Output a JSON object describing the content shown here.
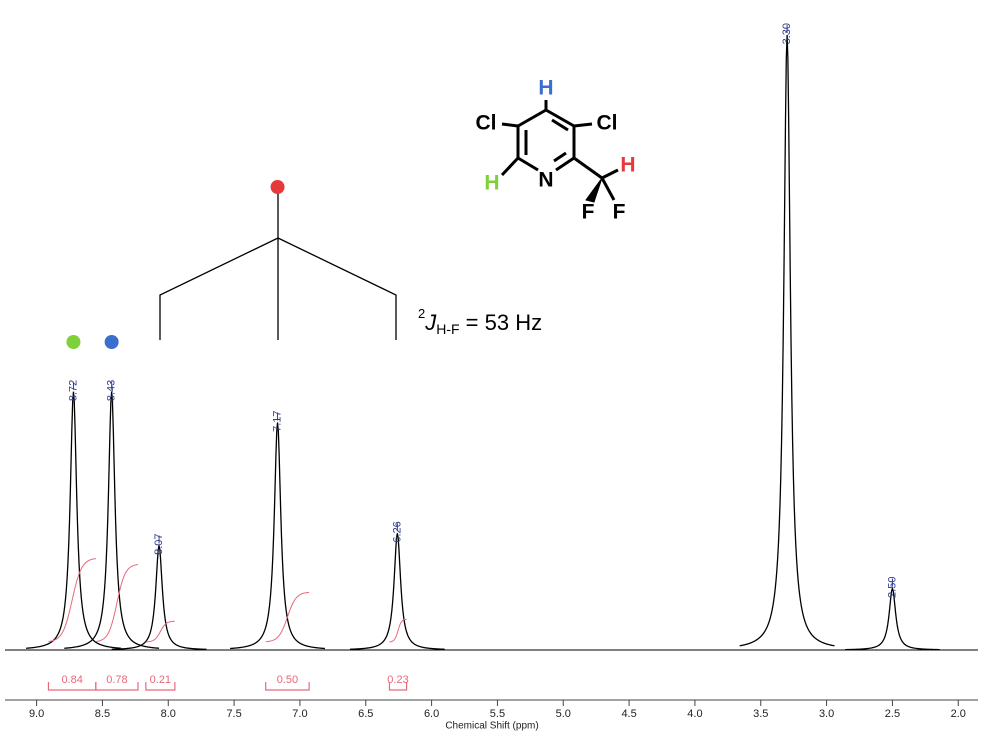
{
  "chart_data": {
    "type": "spectrum",
    "xlabel": "Chemical Shift (ppm)",
    "xlim": [
      9.24,
      1.85
    ],
    "ylim": [
      -3,
      100
    ],
    "xticks": [
      {
        "value": 9,
        "label": "9.0"
      },
      {
        "value": 8.5,
        "label": "8.5"
      },
      {
        "value": 8,
        "label": "8.0"
      },
      {
        "value": 7.5,
        "label": "7.5"
      },
      {
        "value": 7,
        "label": "7.0"
      },
      {
        "value": 6.5,
        "label": "6.5"
      },
      {
        "value": 6,
        "label": "6.0"
      },
      {
        "value": 5.5,
        "label": "5.5"
      },
      {
        "value": 5,
        "label": "5.0"
      },
      {
        "value": 4.5,
        "label": "4.5"
      },
      {
        "value": 4,
        "label": "4.0"
      },
      {
        "value": 3.5,
        "label": "3.5"
      },
      {
        "value": 3,
        "label": "3.0"
      },
      {
        "value": 2.5,
        "label": "2.5"
      },
      {
        "value": 2,
        "label": "2.0"
      }
    ],
    "color": "#000000",
    "peaks": {
      "x": [
        8.72,
        8.43,
        8.07,
        7.17,
        6.26,
        3.3,
        2.5
      ],
      "x_labels": [
        "8.72",
        "8.43",
        "8.07",
        "7.17",
        "6.26",
        "3.30",
        "2.50"
      ],
      "values": [
        42,
        42,
        17,
        37,
        19,
        100,
        10
      ],
      "label_color": "#2e3d8f"
    },
    "integrals": {
      "values": [
        0.84,
        0.78,
        0.21,
        0.5,
        0.23
      ],
      "value_labels": [
        "0.84",
        "0.78",
        "0.21",
        "0.50",
        "0.23"
      ],
      "ranges": [
        [
          8.91,
          8.55
        ],
        [
          8.55,
          8.23
        ],
        [
          8.17,
          7.95
        ],
        [
          7.26,
          6.93
        ],
        [
          6.32,
          6.19
        ]
      ],
      "color": "#e8697a"
    },
    "markers": [
      {
        "x": 8.72,
        "color": "#7fd13b"
      },
      {
        "x": 8.43,
        "color": "#3a6fd0"
      },
      {
        "x": 7.17,
        "color": "#e8393a"
      }
    ],
    "coupling": {
      "superscript": "2",
      "symbol": "J",
      "subscript": "H-F",
      "text": " = 53 Hz"
    },
    "structure": {
      "labels": [
        "Cl",
        "Cl",
        "H",
        "H",
        "N",
        "H",
        "F",
        "F"
      ],
      "colors": [
        "#000000",
        "#000000",
        "#3a6fd0",
        "#7fd13b",
        "#000000",
        "#e8393a",
        "#000000",
        "#000000"
      ]
    }
  }
}
